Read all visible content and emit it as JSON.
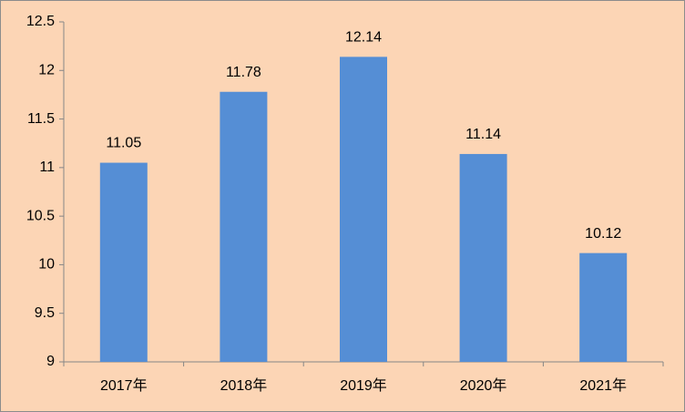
{
  "chart_data": {
    "type": "bar",
    "categories": [
      "2017年",
      "2018年",
      "2019年",
      "2020年",
      "2021年"
    ],
    "values": [
      11.05,
      11.78,
      12.14,
      11.14,
      10.12
    ],
    "color": "#558ed5",
    "ylim": [
      9,
      12.5
    ],
    "yticks": [
      9,
      9.5,
      10,
      10.5,
      11,
      11.5,
      12,
      12.5
    ],
    "grid": false
  }
}
